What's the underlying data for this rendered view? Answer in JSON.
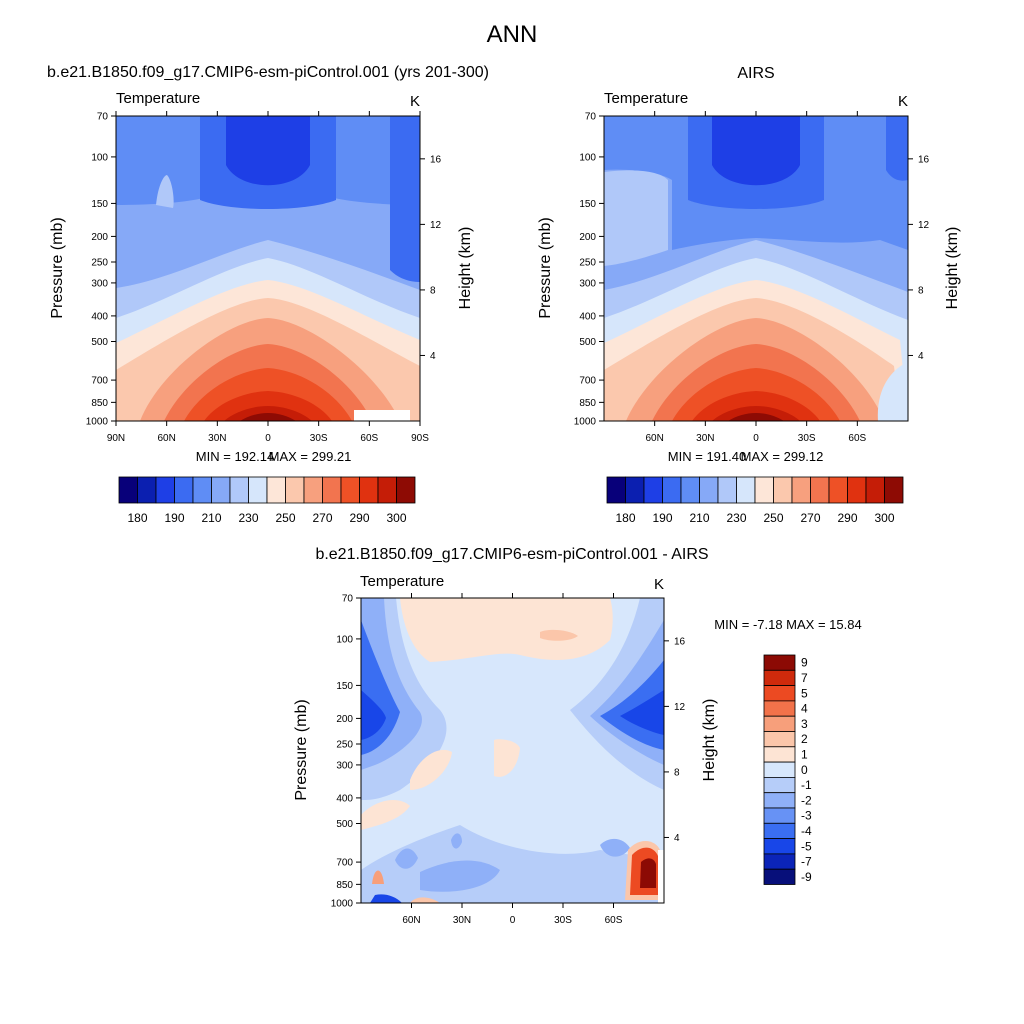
{
  "figure": {
    "title": "ANN"
  },
  "colors": {
    "temperature_scale": [
      "#08007a",
      "#0b1fb0",
      "#1e3fe6",
      "#3b6bf2",
      "#5f8df5",
      "#86a9f7",
      "#b0c8f9",
      "#d6e6fb",
      "#fde6d8",
      "#fbc8ad",
      "#f7a07e",
      "#f2744f",
      "#ee5126",
      "#e03210",
      "#c51d07",
      "#8e0b04"
    ],
    "difference_scale": [
      "#070f7a",
      "#0b24b8",
      "#1846e8",
      "#3a6ef2",
      "#6792f5",
      "#8fb0f8",
      "#b6cdf9",
      "#d7e7fc",
      "#fde4d4",
      "#fbc6aa",
      "#f79f7b",
      "#f2724a",
      "#ec4a22",
      "#cf2a0c",
      "#8c0a04"
    ]
  },
  "chart_data": [
    {
      "type": "heatmap",
      "panel": "model",
      "title": "b.e21.B1850.f09_g17.CMIP6-esm-piControl.001 (yrs 201-300)",
      "field_label": "Temperature",
      "units": "K",
      "xlabel": "",
      "ylabel": "Pressure (mb)",
      "y2label": "Height (km)",
      "x_ticks": [
        "90N",
        "60N",
        "30N",
        "0",
        "30S",
        "60S",
        "90S"
      ],
      "x_values": [
        90,
        60,
        30,
        0,
        -30,
        -60,
        -90
      ],
      "xlim": [
        90,
        -90
      ],
      "y_ticks": [
        "70",
        "100",
        "150",
        "200",
        "250",
        "300",
        "400",
        "500",
        "700",
        "850",
        "1000"
      ],
      "y_values": [
        70,
        100,
        150,
        200,
        250,
        300,
        400,
        500,
        700,
        850,
        1000
      ],
      "ylim": [
        1000,
        70
      ],
      "y_scale": "log",
      "y2_ticks": [
        "4",
        "8",
        "12",
        "16"
      ],
      "y2_values": [
        4,
        8,
        12,
        16
      ],
      "min_label": "MIN = 192.14",
      "max_label": "MAX = 299.21",
      "min": 192.14,
      "max": 299.21,
      "colorbar": {
        "orientation": "horizontal",
        "levels": [
          175,
          180,
          185,
          190,
          200,
          210,
          220,
          230,
          240,
          250,
          260,
          270,
          280,
          290,
          295,
          300
        ],
        "labels": [
          "180",
          "190",
          "210",
          "230",
          "250",
          "270",
          "290",
          "300"
        ]
      }
    },
    {
      "type": "heatmap",
      "panel": "observations",
      "title": "AIRS",
      "field_label": "Temperature",
      "units": "K",
      "xlabel": "",
      "ylabel": "Pressure (mb)",
      "y2label": "Height (km)",
      "x_ticks": [
        "60N",
        "30N",
        "0",
        "30S",
        "60S"
      ],
      "x_values": [
        60,
        30,
        0,
        -30,
        -60
      ],
      "xlim": [
        90,
        -90
      ],
      "y_ticks": [
        "70",
        "100",
        "150",
        "200",
        "250",
        "300",
        "400",
        "500",
        "700",
        "850",
        "1000"
      ],
      "y_values": [
        70,
        100,
        150,
        200,
        250,
        300,
        400,
        500,
        700,
        850,
        1000
      ],
      "ylim": [
        1000,
        70
      ],
      "y_scale": "log",
      "y2_ticks": [
        "4",
        "8",
        "12",
        "16"
      ],
      "y2_values": [
        4,
        8,
        12,
        16
      ],
      "min_label": "MIN = 191.40",
      "max_label": "MAX = 299.12",
      "min": 191.4,
      "max": 299.12,
      "colorbar": {
        "orientation": "horizontal",
        "levels": [
          175,
          180,
          185,
          190,
          200,
          210,
          220,
          230,
          240,
          250,
          260,
          270,
          280,
          290,
          295,
          300
        ],
        "labels": [
          "180",
          "190",
          "210",
          "230",
          "250",
          "270",
          "290",
          "300"
        ]
      }
    },
    {
      "type": "heatmap",
      "panel": "difference",
      "title": "b.e21.B1850.f09_g17.CMIP6-esm-piControl.001 - AIRS",
      "field_label": "Temperature",
      "units": "K",
      "xlabel": "",
      "ylabel": "Pressure (mb)",
      "y2label": "Height (km)",
      "x_ticks": [
        "60N",
        "30N",
        "0",
        "30S",
        "60S"
      ],
      "x_values": [
        60,
        30,
        0,
        -30,
        -60
      ],
      "xlim": [
        90,
        -90
      ],
      "y_ticks": [
        "70",
        "100",
        "150",
        "200",
        "250",
        "300",
        "400",
        "500",
        "700",
        "850",
        "1000"
      ],
      "y_values": [
        70,
        100,
        150,
        200,
        250,
        300,
        400,
        500,
        700,
        850,
        1000
      ],
      "ylim": [
        1000,
        70
      ],
      "y_scale": "log",
      "y2_ticks": [
        "4",
        "8",
        "12",
        "16"
      ],
      "y2_values": [
        4,
        8,
        12,
        16
      ],
      "minmax_label": "MIN =  -7.18  MAX =  15.84",
      "min": -7.18,
      "max": 15.84,
      "colorbar": {
        "orientation": "vertical",
        "labels": [
          "9",
          "7",
          "5",
          "4",
          "3",
          "2",
          "1",
          "0",
          "-1",
          "-2",
          "-3",
          "-4",
          "-5",
          "-7",
          "-9"
        ]
      }
    }
  ]
}
